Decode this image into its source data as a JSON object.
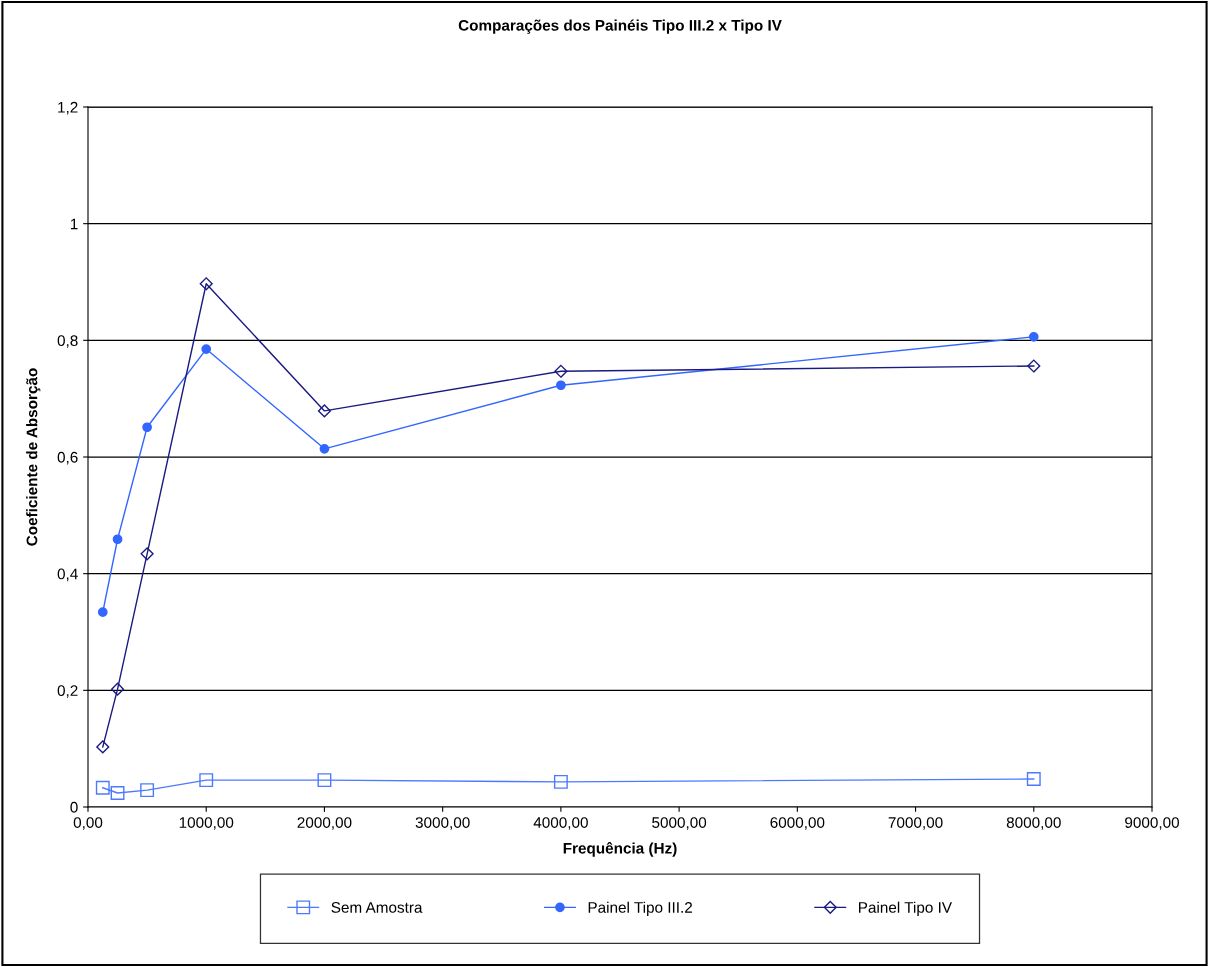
{
  "chart_data": {
    "type": "line",
    "title": "Comparações dos Painéis Tipo III.2 x Tipo IV",
    "xlabel": "Frequência (Hz)",
    "ylabel": "Coeficiente de Absorção",
    "x": [
      125,
      250,
      500,
      1000,
      2000,
      4000,
      8000
    ],
    "series": [
      {
        "name": "Sem Amostra",
        "color": "#4d79ff",
        "marker": "square",
        "values": [
          0.033,
          0.024,
          0.029,
          0.046,
          0.046,
          0.043,
          0.048
        ]
      },
      {
        "name": "Painel Tipo III.2",
        "color": "#3366ff",
        "marker": "circle",
        "values": [
          0.334,
          0.459,
          0.651,
          0.785,
          0.614,
          0.723,
          0.806
        ]
      },
      {
        "name": "Painel Tipo IV",
        "color": "#1a1a80",
        "marker": "diamond",
        "values": [
          0.103,
          0.202,
          0.434,
          0.897,
          0.679,
          0.747,
          0.756
        ]
      }
    ],
    "xlim": [
      0,
      9000
    ],
    "xticks": [
      {
        "value": 0,
        "label": "0,00"
      },
      {
        "value": 1000,
        "label": "1000,00"
      },
      {
        "value": 2000,
        "label": "2000,00"
      },
      {
        "value": 3000,
        "label": "3000,00"
      },
      {
        "value": 4000,
        "label": "4000,00"
      },
      {
        "value": 5000,
        "label": "5000,00"
      },
      {
        "value": 6000,
        "label": "6000,00"
      },
      {
        "value": 7000,
        "label": "7000,00"
      },
      {
        "value": 8000,
        "label": "8000,00"
      },
      {
        "value": 9000,
        "label": "9000,00"
      }
    ],
    "ylim": [
      0,
      1.2
    ],
    "yticks": [
      0,
      {
        "value": 0.2,
        "label": "0,2"
      },
      {
        "value": 0.4,
        "label": "0,4"
      },
      {
        "value": 0.6,
        "label": "0,6"
      },
      {
        "value": 0.8,
        "label": "0,8"
      },
      1,
      {
        "value": 1.2,
        "label": "1,2"
      }
    ],
    "grid": "y",
    "legend": "bottom"
  }
}
